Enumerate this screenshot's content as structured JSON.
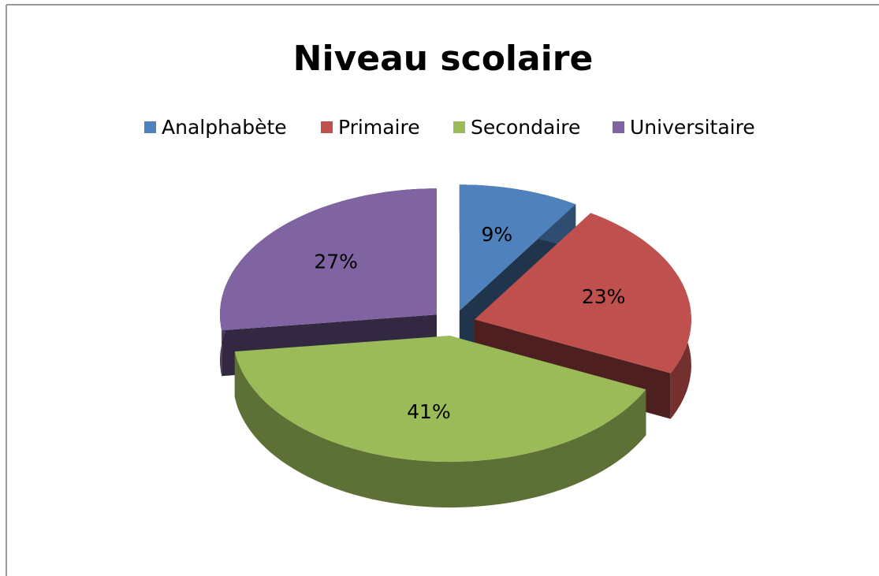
{
  "chart_data": {
    "type": "pie",
    "title": "Niveau scolaire",
    "categories": [
      "Analphabète",
      "Primaire",
      "Secondaire",
      "Universitaire"
    ],
    "values": [
      9,
      23,
      41,
      27
    ],
    "value_labels": [
      "9%",
      "23%",
      "41%",
      "27%"
    ],
    "colors": [
      "#4f81bd",
      "#c0504d",
      "#9bbb59",
      "#8064a2"
    ],
    "legend": "top"
  }
}
